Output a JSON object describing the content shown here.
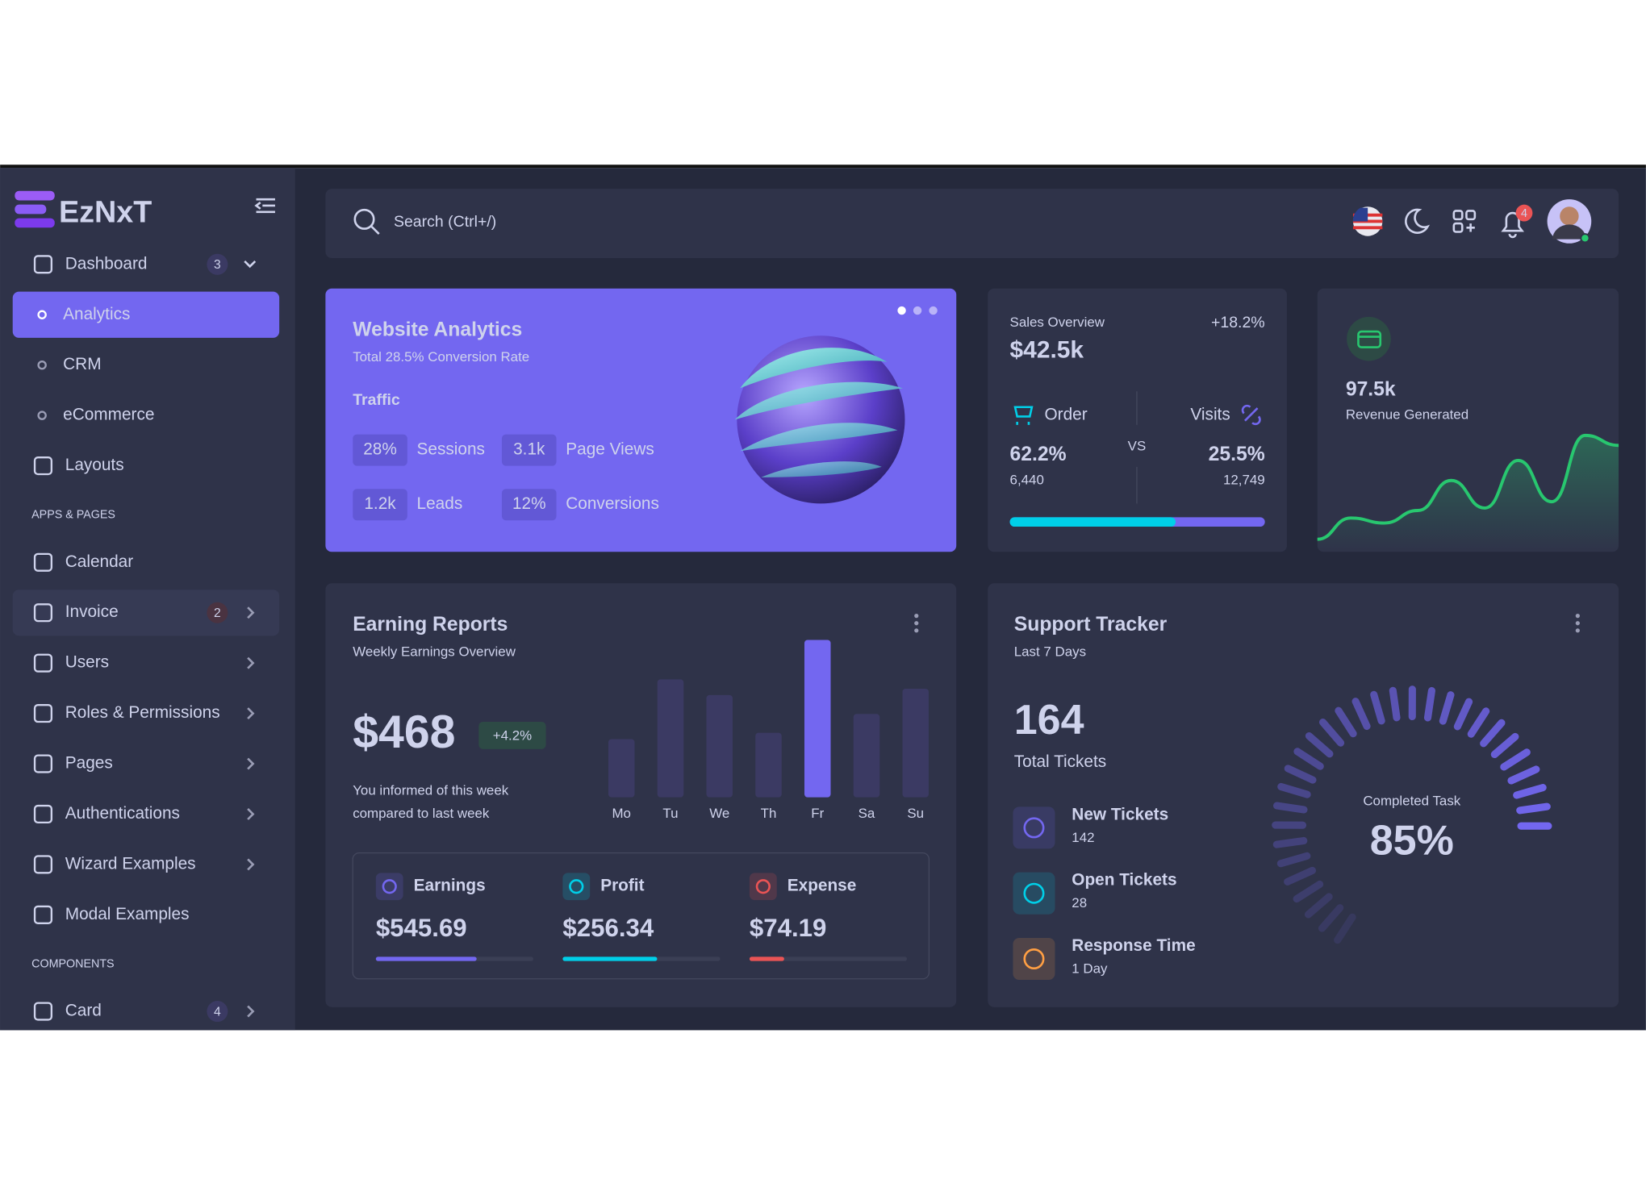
{
  "brand": "EzNxT",
  "search": "Search (Ctrl+/)",
  "notifications": "4",
  "sidebar": {
    "dashboard": {
      "label": "Dashboard",
      "badge": "3"
    },
    "submenu": [
      "Analytics",
      "CRM",
      "eCommerce"
    ],
    "layouts": "Layouts",
    "apps_header": "APPS & PAGES",
    "apps": [
      {
        "label": "Calendar"
      },
      {
        "label": "Invoice",
        "badge": "2"
      },
      {
        "label": "Users"
      },
      {
        "label": "Roles & Permissions"
      },
      {
        "label": "Pages"
      },
      {
        "label": "Authentications"
      },
      {
        "label": "Wizard Examples"
      },
      {
        "label": "Modal Examples"
      }
    ],
    "components_header": "COMPONENTS",
    "components": [
      {
        "label": "Card",
        "badge": "4"
      }
    ]
  },
  "website_analytics": {
    "title": "Website Analytics",
    "subtitle": "Total 28.5% Conversion Rate",
    "section": "Traffic",
    "stats": [
      {
        "value": "28%",
        "label": "Sessions"
      },
      {
        "value": "3.1k",
        "label": "Page Views"
      },
      {
        "value": "1.2k",
        "label": "Leads"
      },
      {
        "value": "12%",
        "label": "Conversions"
      }
    ]
  },
  "sales_overview": {
    "title": "Sales Overview",
    "change": "+18.2%",
    "total": "$42.5k",
    "vs": "VS",
    "order": {
      "label": "Order",
      "percent": "62.2%",
      "count": "6,440"
    },
    "visits": {
      "label": "Visits",
      "percent": "25.5%",
      "count": "12,749"
    },
    "progress": 65
  },
  "revenue": {
    "value": "97.5k",
    "label": "Revenue Generated",
    "chart_data": {
      "type": "line",
      "color": "#28c76f",
      "values": [
        5,
        22,
        18,
        28,
        52,
        30,
        68,
        35,
        88,
        80
      ]
    }
  },
  "earning_reports": {
    "title": "Earning Reports",
    "subtitle": "Weekly Earnings Overview",
    "amount": "$468",
    "change": "+4.2%",
    "note": [
      "You informed of this week",
      "compared to last week"
    ],
    "chart_data": {
      "type": "bar",
      "categories": [
        "Mo",
        "Tu",
        "We",
        "Th",
        "Fr",
        "Sa",
        "Su"
      ],
      "values": [
        37,
        75,
        65,
        41,
        100,
        53,
        69
      ],
      "color": "#3b3a63",
      "highlight_color": "#7367f0"
    },
    "breakdown": [
      {
        "label": "Earnings",
        "amount": "$545.69",
        "progress": 64,
        "color": "#7367f0"
      },
      {
        "label": "Profit",
        "amount": "$256.34",
        "progress": 60,
        "color": "#00cfe8"
      },
      {
        "label": "Expense",
        "amount": "$74.19",
        "progress": 22,
        "color": "#ea5455"
      }
    ]
  },
  "support_tracker": {
    "title": "Support Tracker",
    "subtitle": "Last 7 Days",
    "total": "164",
    "total_label": "Total Tickets",
    "items": [
      {
        "label": "New Tickets",
        "value": "142"
      },
      {
        "label": "Open Tickets",
        "value": "28"
      },
      {
        "label": "Response Time",
        "value": "1 Day"
      }
    ],
    "gauge": {
      "label": "Completed Task",
      "value": 85,
      "value_label": "85%",
      "color": "#7367f0"
    }
  }
}
